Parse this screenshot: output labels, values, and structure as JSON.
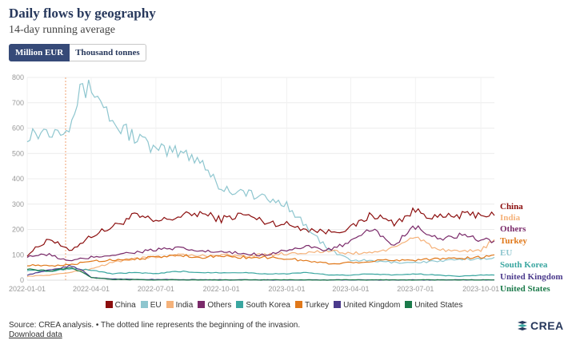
{
  "header": {
    "title": "Daily flows by geography",
    "subtitle": "14-day running average"
  },
  "toggle": {
    "options": [
      "Million EUR",
      "Thousand tonnes"
    ],
    "selected": "Million EUR"
  },
  "footer": {
    "source": "Source: CREA analysis. • The dotted line represents the beginning of the invasion.",
    "download": "Download data",
    "logo": "CREA"
  },
  "chart_data": {
    "type": "line",
    "ylim": [
      0,
      800
    ],
    "yticks": [
      0,
      100,
      200,
      300,
      400,
      500,
      600,
      700,
      800
    ],
    "xlim": [
      "2022-01-01",
      "2023-10-20"
    ],
    "xticks": [
      "2022-01-01",
      "2022-04-01",
      "2022-07-01",
      "2022-10-01",
      "2023-01-01",
      "2023-04-01",
      "2023-07-01",
      "2023-10-01"
    ],
    "reference_line": "2022-02-24",
    "grid": true,
    "legend_position": "bottom",
    "series": [
      {
        "name": "China",
        "color": "#8b0d0d",
        "points": [
          [
            "2022-01-01",
            100
          ],
          [
            "2022-02-01",
            165
          ],
          [
            "2022-03-01",
            115
          ],
          [
            "2022-04-01",
            175
          ],
          [
            "2022-05-01",
            210
          ],
          [
            "2022-06-01",
            255
          ],
          [
            "2022-07-01",
            230
          ],
          [
            "2022-08-01",
            250
          ],
          [
            "2022-09-01",
            265
          ],
          [
            "2022-10-01",
            240
          ],
          [
            "2022-11-01",
            260
          ],
          [
            "2022-12-01",
            230
          ],
          [
            "2023-01-01",
            220
          ],
          [
            "2023-02-01",
            200
          ],
          [
            "2023-03-01",
            190
          ],
          [
            "2023-04-01",
            205
          ],
          [
            "2023-05-01",
            260
          ],
          [
            "2023-06-01",
            225
          ],
          [
            "2023-07-01",
            275
          ],
          [
            "2023-08-01",
            245
          ],
          [
            "2023-09-01",
            255
          ],
          [
            "2023-10-01",
            262
          ],
          [
            "2023-10-20",
            255
          ]
        ]
      },
      {
        "name": "EU",
        "color": "#8ec6cf",
        "points": [
          [
            "2022-01-01",
            580
          ],
          [
            "2022-02-01",
            590
          ],
          [
            "2022-03-01",
            620
          ],
          [
            "2022-03-20",
            760
          ],
          [
            "2022-04-10",
            740
          ],
          [
            "2022-05-01",
            620
          ],
          [
            "2022-06-01",
            570
          ],
          [
            "2022-07-01",
            510
          ],
          [
            "2022-08-01",
            505
          ],
          [
            "2022-09-01",
            480
          ],
          [
            "2022-10-01",
            360
          ],
          [
            "2022-11-01",
            350
          ],
          [
            "2022-12-01",
            320
          ],
          [
            "2023-01-01",
            300
          ],
          [
            "2023-02-01",
            200
          ],
          [
            "2023-03-01",
            120
          ],
          [
            "2023-04-01",
            80
          ],
          [
            "2023-05-01",
            75
          ],
          [
            "2023-06-01",
            70
          ],
          [
            "2023-07-01",
            70
          ],
          [
            "2023-08-01",
            75
          ],
          [
            "2023-09-01",
            80
          ],
          [
            "2023-10-01",
            85
          ],
          [
            "2023-10-20",
            90
          ]
        ]
      },
      {
        "name": "India",
        "color": "#f5b27a",
        "points": [
          [
            "2022-01-01",
            15
          ],
          [
            "2022-02-01",
            20
          ],
          [
            "2022-03-01",
            30
          ],
          [
            "2022-04-01",
            45
          ],
          [
            "2022-05-01",
            70
          ],
          [
            "2022-06-01",
            85
          ],
          [
            "2022-07-01",
            90
          ],
          [
            "2022-08-01",
            100
          ],
          [
            "2022-09-01",
            95
          ],
          [
            "2022-10-01",
            100
          ],
          [
            "2022-11-01",
            95
          ],
          [
            "2022-12-01",
            100
          ],
          [
            "2023-01-01",
            105
          ],
          [
            "2023-02-01",
            110
          ],
          [
            "2023-03-01",
            115
          ],
          [
            "2023-04-01",
            105
          ],
          [
            "2023-05-01",
            110
          ],
          [
            "2023-06-01",
            125
          ],
          [
            "2023-07-01",
            175
          ],
          [
            "2023-08-01",
            120
          ],
          [
            "2023-09-01",
            110
          ],
          [
            "2023-10-01",
            120
          ],
          [
            "2023-10-20",
            160
          ]
        ]
      },
      {
        "name": "Others",
        "color": "#7a2a6a",
        "points": [
          [
            "2022-01-01",
            95
          ],
          [
            "2022-02-01",
            100
          ],
          [
            "2022-03-01",
            75
          ],
          [
            "2022-04-01",
            90
          ],
          [
            "2022-05-01",
            100
          ],
          [
            "2022-06-01",
            110
          ],
          [
            "2022-07-01",
            120
          ],
          [
            "2022-08-01",
            125
          ],
          [
            "2022-09-01",
            115
          ],
          [
            "2022-10-01",
            110
          ],
          [
            "2022-11-01",
            105
          ],
          [
            "2022-12-01",
            100
          ],
          [
            "2023-01-01",
            120
          ],
          [
            "2023-02-01",
            130
          ],
          [
            "2023-03-01",
            120
          ],
          [
            "2023-04-01",
            150
          ],
          [
            "2023-05-01",
            200
          ],
          [
            "2023-06-01",
            140
          ],
          [
            "2023-07-01",
            210
          ],
          [
            "2023-08-01",
            160
          ],
          [
            "2023-09-01",
            175
          ],
          [
            "2023-10-01",
            160
          ],
          [
            "2023-10-20",
            155
          ]
        ]
      },
      {
        "name": "South Korea",
        "color": "#3aa6a0",
        "points": [
          [
            "2022-01-01",
            40
          ],
          [
            "2022-02-01",
            35
          ],
          [
            "2022-03-01",
            45
          ],
          [
            "2022-04-01",
            40
          ],
          [
            "2022-05-01",
            25
          ],
          [
            "2022-06-01",
            30
          ],
          [
            "2022-07-01",
            25
          ],
          [
            "2022-08-01",
            35
          ],
          [
            "2022-09-01",
            30
          ],
          [
            "2022-10-01",
            30
          ],
          [
            "2022-11-01",
            30
          ],
          [
            "2022-12-01",
            25
          ],
          [
            "2023-01-01",
            25
          ],
          [
            "2023-02-01",
            30
          ],
          [
            "2023-03-01",
            20
          ],
          [
            "2023-04-01",
            20
          ],
          [
            "2023-05-01",
            25
          ],
          [
            "2023-06-01",
            20
          ],
          [
            "2023-07-01",
            25
          ],
          [
            "2023-08-01",
            20
          ],
          [
            "2023-09-01",
            15
          ],
          [
            "2023-10-01",
            20
          ],
          [
            "2023-10-20",
            20
          ]
        ]
      },
      {
        "name": "Turkey",
        "color": "#e0781a",
        "points": [
          [
            "2022-01-01",
            60
          ],
          [
            "2022-02-01",
            55
          ],
          [
            "2022-03-01",
            60
          ],
          [
            "2022-04-01",
            75
          ],
          [
            "2022-05-01",
            80
          ],
          [
            "2022-06-01",
            85
          ],
          [
            "2022-07-01",
            90
          ],
          [
            "2022-08-01",
            100
          ],
          [
            "2022-09-01",
            90
          ],
          [
            "2022-10-01",
            95
          ],
          [
            "2022-11-01",
            90
          ],
          [
            "2022-12-01",
            90
          ],
          [
            "2023-01-01",
            85
          ],
          [
            "2023-02-01",
            75
          ],
          [
            "2023-03-01",
            65
          ],
          [
            "2023-04-01",
            70
          ],
          [
            "2023-05-01",
            75
          ],
          [
            "2023-06-01",
            80
          ],
          [
            "2023-07-01",
            80
          ],
          [
            "2023-08-01",
            85
          ],
          [
            "2023-09-01",
            85
          ],
          [
            "2023-10-01",
            90
          ],
          [
            "2023-10-20",
            100
          ]
        ]
      },
      {
        "name": "United Kingdom",
        "color": "#4b3a8c",
        "points": [
          [
            "2022-01-01",
            20
          ],
          [
            "2022-02-01",
            40
          ],
          [
            "2022-03-01",
            55
          ],
          [
            "2022-03-20",
            40
          ],
          [
            "2022-04-01",
            10
          ],
          [
            "2022-05-01",
            5
          ],
          [
            "2022-06-01",
            3
          ],
          [
            "2022-08-01",
            2
          ],
          [
            "2022-12-01",
            1
          ],
          [
            "2023-04-01",
            1
          ],
          [
            "2023-10-20",
            1
          ]
        ]
      },
      {
        "name": "United States",
        "color": "#1b7a4a",
        "points": [
          [
            "2022-01-01",
            45
          ],
          [
            "2022-02-01",
            35
          ],
          [
            "2022-03-01",
            50
          ],
          [
            "2022-03-20",
            30
          ],
          [
            "2022-04-01",
            10
          ],
          [
            "2022-05-01",
            3
          ],
          [
            "2022-07-01",
            1
          ],
          [
            "2023-10-20",
            1
          ]
        ]
      }
    ],
    "end_labels": [
      {
        "name": "China",
        "color": "#8b0d0d"
      },
      {
        "name": "India",
        "color": "#f5b27a"
      },
      {
        "name": "Others",
        "color": "#7a2a6a"
      },
      {
        "name": "Turkey",
        "color": "#e0781a"
      },
      {
        "name": "EU",
        "color": "#8ec6cf"
      },
      {
        "name": "South Korea",
        "color": "#3aa6a0"
      },
      {
        "name": "United Kingdom",
        "color": "#4b3a8c"
      },
      {
        "name": "United States",
        "color": "#1b7a4a"
      }
    ],
    "xtick_labels": [
      "2022-01-01",
      "2022-04-01",
      "2022-07-01",
      "2022-10-01",
      "2023-01-01",
      "2023-04-01",
      "2023-07-01",
      "2023-10-01"
    ]
  }
}
